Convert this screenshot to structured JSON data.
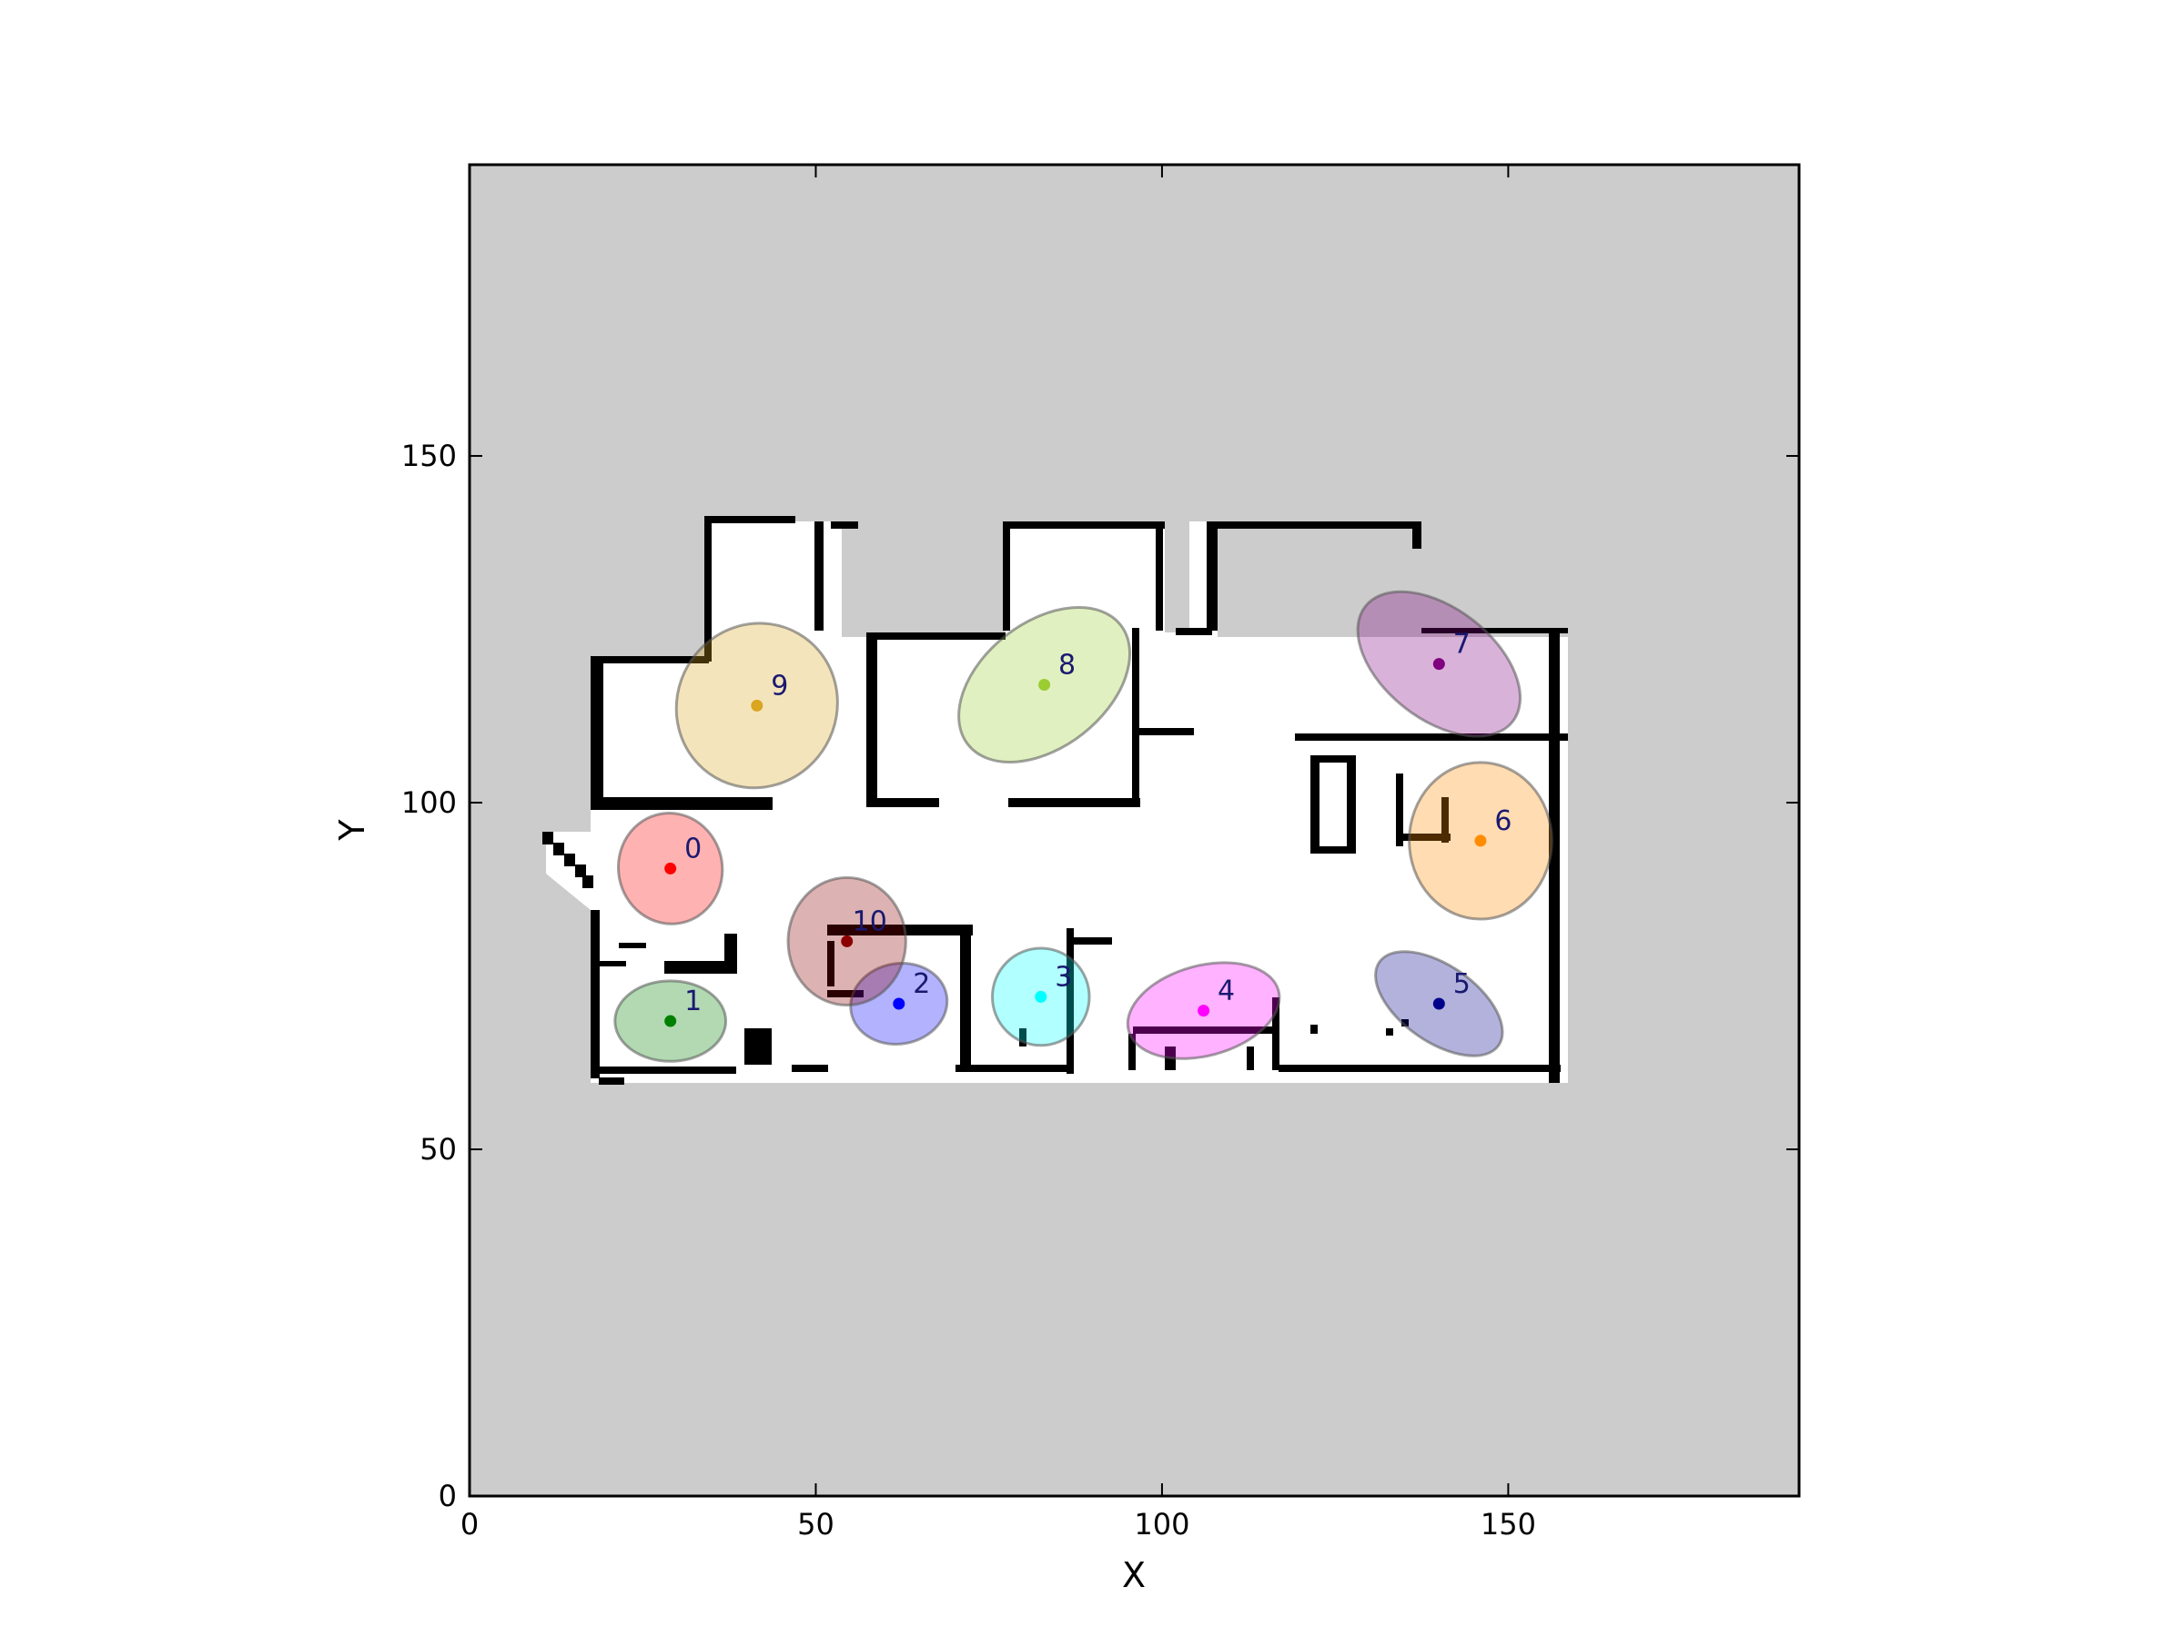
{
  "chart_data": {
    "type": "scatter",
    "title": "",
    "xlabel": "X",
    "ylabel": "Y",
    "xlim": [
      0,
      192
    ],
    "ylim": [
      0,
      192
    ],
    "xticks": [
      0,
      50,
      100,
      150
    ],
    "yticks": [
      0,
      50,
      100,
      150
    ],
    "grid": false,
    "background_color": "#cccccc",
    "free_space_color": "#ffffff",
    "wall_color": "#000000",
    "regions": [
      {
        "id": "0",
        "x": 29,
        "y": 90.5,
        "color": "#ff0000",
        "rx": 7.5,
        "ry": 8.0,
        "angle": 10
      },
      {
        "id": "1",
        "x": 29,
        "y": 68.5,
        "color": "#008000",
        "rx": 8.0,
        "ry": 5.8,
        "angle": 0
      },
      {
        "id": "2",
        "x": 62,
        "y": 71,
        "color": "#0000ff",
        "rx": 7.0,
        "ry": 5.8,
        "angle": 10
      },
      {
        "id": "3",
        "x": 82.5,
        "y": 72,
        "color": "#00ffff",
        "rx": 7.0,
        "ry": 7.0,
        "angle": 0
      },
      {
        "id": "4",
        "x": 106,
        "y": 70,
        "color": "#ff00ff",
        "rx": 11.2,
        "ry": 6.5,
        "angle": 15
      },
      {
        "id": "5",
        "x": 140,
        "y": 71,
        "color": "#00008b",
        "rx": 10.5,
        "ry": 5.5,
        "angle": -35
      },
      {
        "id": "6",
        "x": 146,
        "y": 94.5,
        "color": "#ff8c00",
        "rx": 10.3,
        "ry": 11.3,
        "angle": 0
      },
      {
        "id": "7",
        "x": 140,
        "y": 120,
        "color": "#800080",
        "rx": 13.5,
        "ry": 8.0,
        "angle": -38
      },
      {
        "id": "8",
        "x": 83,
        "y": 117,
        "color": "#9acd32",
        "rx": 14.0,
        "ry": 9.0,
        "angle": 38
      },
      {
        "id": "9",
        "x": 41.5,
        "y": 114,
        "color": "#daa520",
        "rx": 12.0,
        "ry": 11.5,
        "angle": 60
      },
      {
        "id": "10",
        "x": 54.5,
        "y": 80,
        "color": "#8b0000",
        "rx": 8.5,
        "ry": 9.2,
        "angle": 0
      }
    ]
  }
}
